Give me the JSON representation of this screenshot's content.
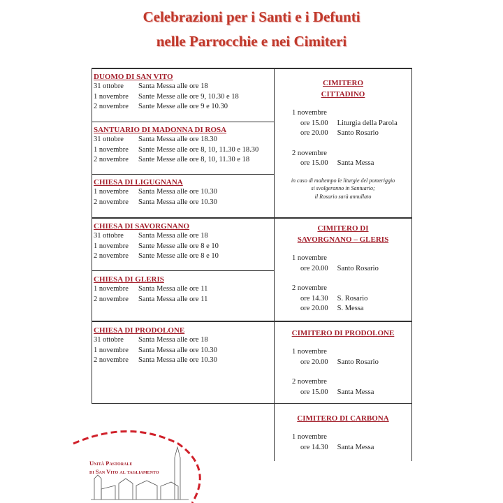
{
  "title": [
    "Celebrazioni per i Santi e i Defunti",
    "nelle Parrocchie e nei Cimiteri"
  ],
  "parishes": [
    {
      "name": "DUOMO DI SAN VITO",
      "rows": [
        [
          "31 ottobre",
          "Santa Messa alle ore 18"
        ],
        [
          "1 novembre",
          "Sante Messe alle ore 9, 10.30 e 18"
        ],
        [
          "2 novembre",
          "Sante Messe alle ore 9 e 10.30"
        ]
      ]
    },
    {
      "name": "SANTUARIO DI MADONNA DI ROSA",
      "rows": [
        [
          "31 ottobre",
          "Santa Messa alle ore 18.30"
        ],
        [
          "1 novembre",
          "Sante Messe alle ore 8, 10, 11.30 e 18.30"
        ],
        [
          "2 novembre",
          "Sante Messe alle ore 8, 10, 11.30 e 18"
        ]
      ]
    },
    {
      "name": "CHIESA DI LIGUGNANA",
      "rows": [
        [
          "1 novembre",
          "Santa Messa alle ore 10.30"
        ],
        [
          "2 novembre",
          "Santa Messa alle ore 10.30"
        ]
      ]
    },
    {
      "name": "CHIESA DI SAVORGNANO",
      "rows": [
        [
          "31 ottobre",
          "Santa Messa alle ore 18"
        ],
        [
          "1 novembre",
          "Sante Messe alle ore 8 e 10"
        ],
        [
          "2 novembre",
          "Sante Messe alle ore 8 e 10"
        ]
      ]
    },
    {
      "name": "CHIESA DI GLERIS",
      "rows": [
        [
          "1 novembre",
          "Santa Messa alle ore 11"
        ],
        [
          "2 novembre",
          "Santa Messa alle ore 11"
        ]
      ]
    },
    {
      "name": "CHIESA DI PRODOLONE",
      "rows": [
        [
          "31 ottobre",
          "Santa Messa alle ore 18"
        ],
        [
          "1 novembre",
          "Santa Messa alle ore 10.30"
        ],
        [
          "2 novembre",
          "Santa Messa alle ore 10.30"
        ]
      ]
    }
  ],
  "cemeteries": [
    {
      "name": [
        "CIMITERO",
        "CITTADINO"
      ],
      "days": [
        {
          "day": "1 novembre",
          "rows": [
            [
              "ore 15.00",
              "Liturgia della Parola"
            ],
            [
              "ore 20.00",
              "Santo Rosario"
            ]
          ]
        },
        {
          "day": "2 novembre",
          "rows": [
            [
              "ore 15.00",
              "Santa Messa"
            ]
          ]
        }
      ],
      "note": [
        "in caso di maltempo le liturgie del pomeriggio",
        "si svolgeranno in Santuario;",
        "il Rosario sarà annullato"
      ]
    },
    {
      "name": [
        "CIMITERO DI",
        "SAVORGNANO – GLERIS"
      ],
      "days": [
        {
          "day": "1 novembre",
          "rows": [
            [
              "ore 20.00",
              "Santo Rosario"
            ]
          ]
        },
        {
          "day": "2 novembre",
          "rows": [
            [
              "ore 14.30",
              "S. Rosario"
            ],
            [
              "ore 20.00",
              "S. Messa"
            ]
          ]
        }
      ]
    },
    {
      "name": [
        "CIMITERO DI PRODOLONE"
      ],
      "days": [
        {
          "day": "1 novembre",
          "rows": [
            [
              "ore 20.00",
              "Santo Rosario"
            ]
          ]
        },
        {
          "day": "2 novembre",
          "rows": [
            [
              "ore 15.00",
              "Santa Messa"
            ]
          ]
        }
      ]
    },
    {
      "name": [
        "CIMITERO DI CARBONA"
      ],
      "days": [
        {
          "day": "1 novembre",
          "rows": [
            [
              "ore 14.30",
              "Santa Messa"
            ]
          ]
        }
      ]
    }
  ],
  "logo": {
    "line1": "Unità Pastorale",
    "line2": "di San Vito al tagliamento"
  },
  "colors": {
    "heading": "#a31f2b",
    "title": "#c0392b"
  }
}
